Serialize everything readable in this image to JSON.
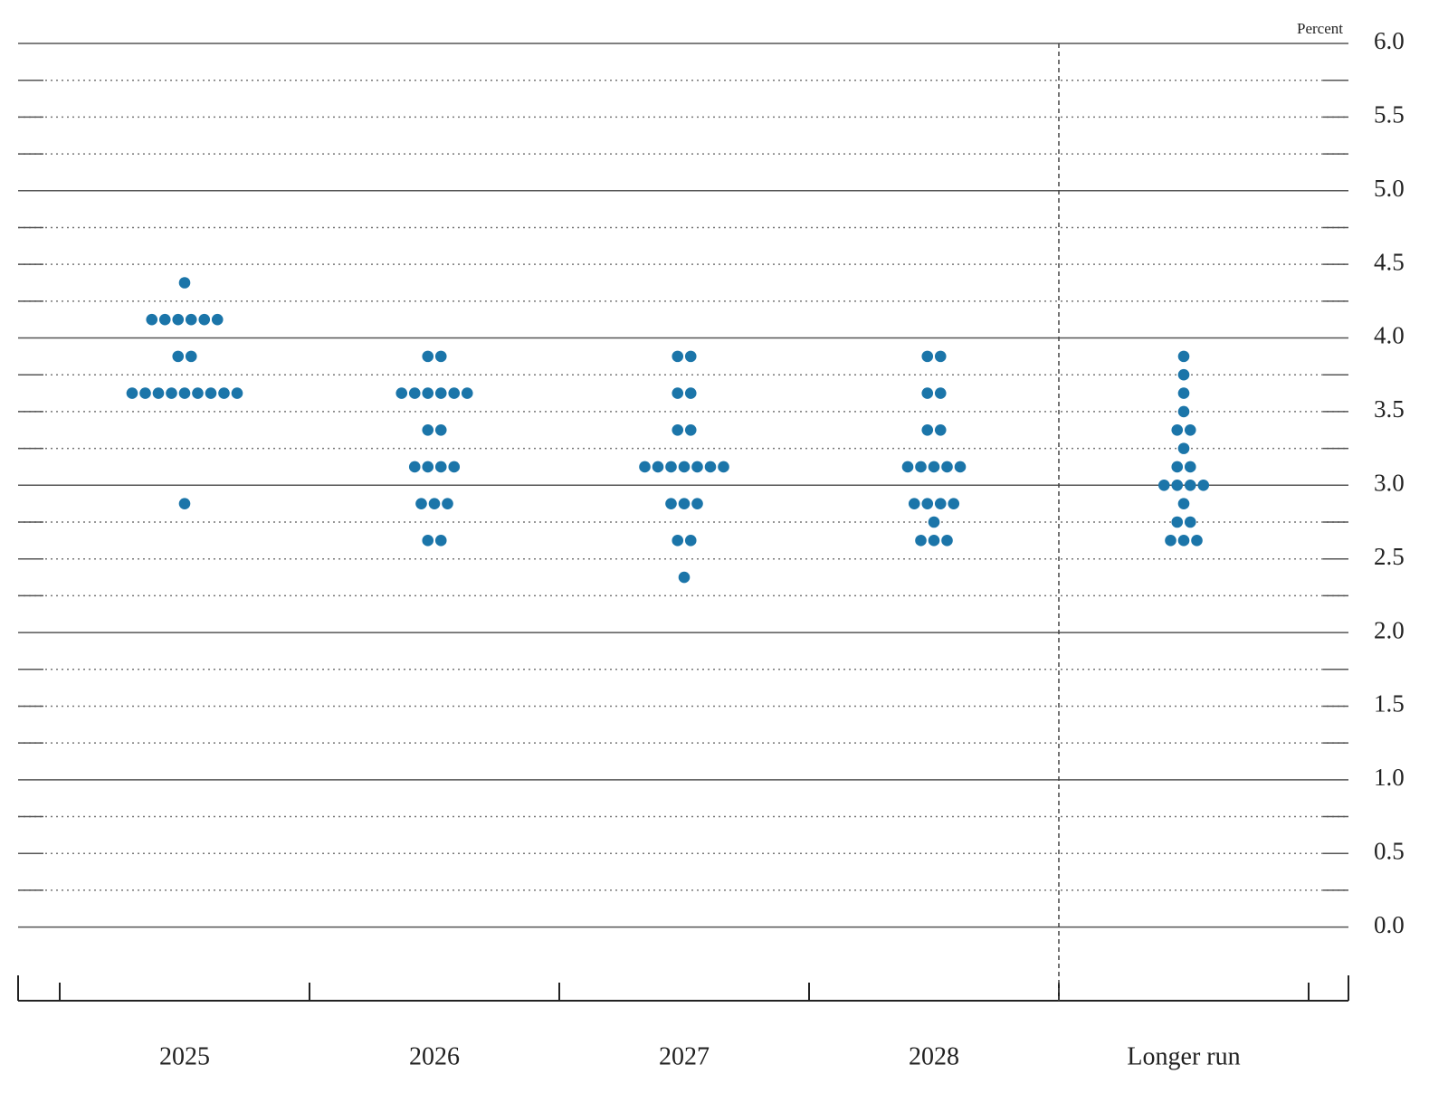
{
  "chart_data": {
    "type": "dot",
    "ylabel": "Percent",
    "categories": [
      "2025",
      "2026",
      "2027",
      "2028",
      "Longer run"
    ],
    "values": [
      [
        4.375,
        4.125,
        4.125,
        4.125,
        4.125,
        4.125,
        4.125,
        3.875,
        3.875,
        3.625,
        3.625,
        3.625,
        3.625,
        3.625,
        3.625,
        3.625,
        3.625,
        3.625,
        2.875
      ],
      [
        3.875,
        3.875,
        3.625,
        3.625,
        3.625,
        3.625,
        3.625,
        3.625,
        3.375,
        3.375,
        3.125,
        3.125,
        3.125,
        3.125,
        2.875,
        2.875,
        2.875,
        2.625,
        2.625
      ],
      [
        3.875,
        3.875,
        3.625,
        3.625,
        3.375,
        3.375,
        3.125,
        3.125,
        3.125,
        3.125,
        3.125,
        3.125,
        3.125,
        2.875,
        2.875,
        2.875,
        2.625,
        2.625,
        2.375
      ],
      [
        3.875,
        3.875,
        3.625,
        3.625,
        3.375,
        3.375,
        3.125,
        3.125,
        3.125,
        3.125,
        3.125,
        2.875,
        2.875,
        2.875,
        2.875,
        2.75,
        2.625,
        2.625,
        2.625
      ],
      [
        3.875,
        3.75,
        3.625,
        3.5,
        3.375,
        3.375,
        3.25,
        3.125,
        3.125,
        3.0,
        3.0,
        3.0,
        3.0,
        2.875,
        2.75,
        2.75,
        2.625,
        2.625,
        2.625
      ]
    ],
    "color": "#1b75a9",
    "ylim": [
      -0.5,
      6.0
    ],
    "yticks": [
      {
        "value": 0,
        "label": "0.0"
      },
      0.5,
      {
        "value": 1,
        "label": "1.0"
      },
      1.5,
      {
        "value": 2,
        "label": "2.0"
      },
      2.5,
      {
        "value": 3,
        "label": "3.0"
      },
      3.5,
      {
        "value": 4,
        "label": "4.0"
      },
      4.5,
      {
        "value": 5,
        "label": "5.0"
      },
      5.5,
      {
        "value": 6,
        "label": "6.0"
      }
    ],
    "minor_yticks": [
      0.25,
      0.75,
      1.25,
      1.75,
      2.25,
      2.75,
      3.25,
      3.75,
      4.25,
      4.75,
      5.25,
      5.75
    ],
    "grid": true
  }
}
